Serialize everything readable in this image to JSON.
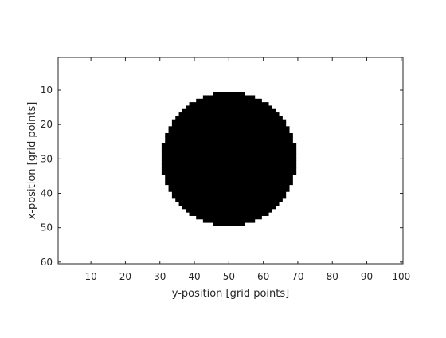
{
  "chart_data": {
    "type": "heatmap",
    "title": "",
    "xlabel": "y-position [grid points]",
    "ylabel": "x-position [grid points]",
    "grid_size": {
      "rows": 60,
      "cols": 100
    },
    "xlim": [
      0.5,
      100.5
    ],
    "ylim": [
      0.5,
      60.5
    ],
    "y_direction": "reversed",
    "x_ticks": [
      10,
      20,
      30,
      40,
      50,
      60,
      70,
      80,
      90,
      100
    ],
    "y_ticks": [
      10,
      20,
      30,
      40,
      50,
      60
    ],
    "grid": false,
    "colormap": {
      "0": "#ffffff",
      "1": "#000000"
    },
    "shape": {
      "kind": "disk",
      "value": 1,
      "center_col": 50,
      "center_row": 30,
      "radius": 19.5
    }
  }
}
